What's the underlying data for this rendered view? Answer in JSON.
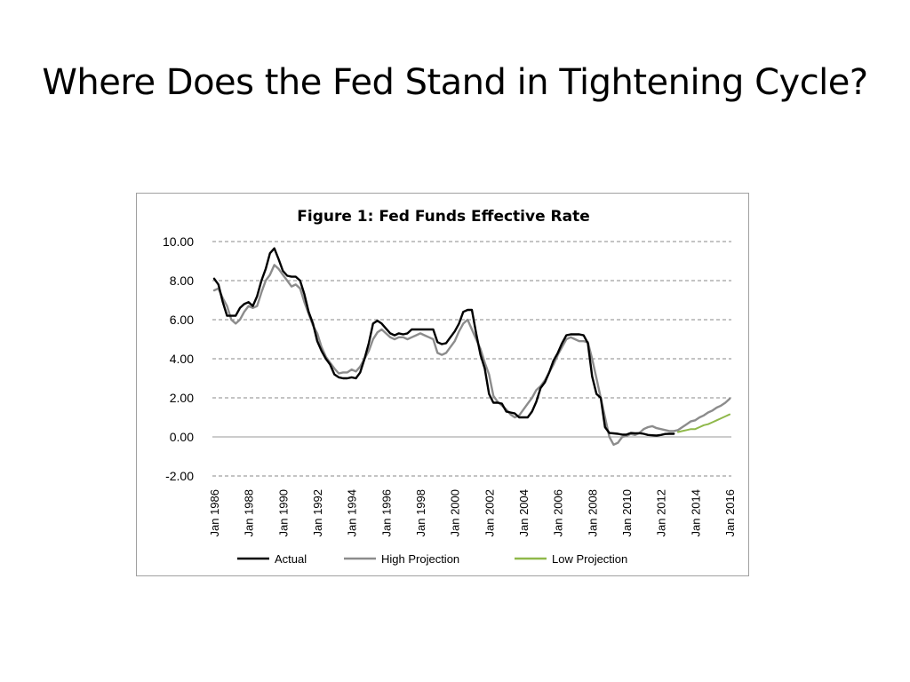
{
  "slide": {
    "title": "Where Does the Fed Stand in Tightening Cycle?"
  },
  "chart_data": {
    "type": "line",
    "title": "Figure 1: Fed Funds Effective Rate",
    "xlabel": "",
    "ylabel": "",
    "ylim": [
      -2,
      10
    ],
    "yticks": [
      10,
      8,
      6,
      4,
      2,
      0,
      -2
    ],
    "ytick_labels": [
      "10.00",
      "8.00",
      "6.00",
      "4.00",
      "2.00",
      "0.00",
      "-2.00"
    ],
    "xlim": [
      1986,
      2016
    ],
    "xticks": [
      1986,
      1988,
      1990,
      1992,
      1994,
      1996,
      1998,
      2000,
      2002,
      2004,
      2006,
      2008,
      2010,
      2012,
      2014,
      2016
    ],
    "xtick_labels": [
      "Jan 1986",
      "Jan 1988",
      "Jan 1990",
      "Jan 1992",
      "Jan 1994",
      "Jan 1996",
      "Jan 1998",
      "Jan 2000",
      "Jan 2002",
      "Jan 2004",
      "Jan 2006",
      "Jan 2008",
      "Jan 2010",
      "Jan 2012",
      "Jan 2014",
      "Jan 2016"
    ],
    "grid": "horizontal dashed",
    "legend_position": "bottom",
    "series": [
      {
        "name": "Actual",
        "color": "#000000",
        "points": [
          [
            1986.0,
            8.1
          ],
          [
            1986.25,
            7.8
          ],
          [
            1986.5,
            6.9
          ],
          [
            1986.75,
            6.2
          ],
          [
            1987.0,
            6.2
          ],
          [
            1987.25,
            6.2
          ],
          [
            1987.5,
            6.6
          ],
          [
            1987.75,
            6.8
          ],
          [
            1988.0,
            6.9
          ],
          [
            1988.25,
            6.7
          ],
          [
            1988.5,
            7.2
          ],
          [
            1988.75,
            8.0
          ],
          [
            1989.0,
            8.6
          ],
          [
            1989.25,
            9.4
          ],
          [
            1989.5,
            9.65
          ],
          [
            1989.75,
            9.1
          ],
          [
            1990.0,
            8.5
          ],
          [
            1990.25,
            8.25
          ],
          [
            1990.5,
            8.2
          ],
          [
            1990.75,
            8.2
          ],
          [
            1991.0,
            8.0
          ],
          [
            1991.25,
            7.3
          ],
          [
            1991.5,
            6.4
          ],
          [
            1991.75,
            5.8
          ],
          [
            1992.0,
            4.9
          ],
          [
            1992.25,
            4.4
          ],
          [
            1992.5,
            4.0
          ],
          [
            1992.75,
            3.7
          ],
          [
            1993.0,
            3.2
          ],
          [
            1993.25,
            3.05
          ],
          [
            1993.5,
            3.0
          ],
          [
            1993.75,
            3.0
          ],
          [
            1994.0,
            3.05
          ],
          [
            1994.25,
            3.0
          ],
          [
            1994.5,
            3.3
          ],
          [
            1994.75,
            4.0
          ],
          [
            1995.0,
            4.8
          ],
          [
            1995.25,
            5.8
          ],
          [
            1995.5,
            5.95
          ],
          [
            1995.75,
            5.8
          ],
          [
            1996.0,
            5.55
          ],
          [
            1996.25,
            5.3
          ],
          [
            1996.5,
            5.2
          ],
          [
            1996.75,
            5.3
          ],
          [
            1997.0,
            5.25
          ],
          [
            1997.25,
            5.3
          ],
          [
            1997.5,
            5.5
          ],
          [
            1997.75,
            5.5
          ],
          [
            1998.0,
            5.5
          ],
          [
            1998.25,
            5.5
          ],
          [
            1998.5,
            5.5
          ],
          [
            1998.75,
            5.5
          ],
          [
            1999.0,
            4.85
          ],
          [
            1999.25,
            4.75
          ],
          [
            1999.5,
            4.8
          ],
          [
            1999.75,
            5.1
          ],
          [
            2000.0,
            5.4
          ],
          [
            2000.25,
            5.8
          ],
          [
            2000.5,
            6.4
          ],
          [
            2000.75,
            6.5
          ],
          [
            2001.0,
            6.5
          ],
          [
            2001.25,
            5.3
          ],
          [
            2001.5,
            4.2
          ],
          [
            2001.75,
            3.5
          ],
          [
            2002.0,
            2.2
          ],
          [
            2002.25,
            1.75
          ],
          [
            2002.5,
            1.75
          ],
          [
            2002.75,
            1.7
          ],
          [
            2003.0,
            1.3
          ],
          [
            2003.25,
            1.25
          ],
          [
            2003.5,
            1.2
          ],
          [
            2003.75,
            1.0
          ],
          [
            2004.0,
            1.0
          ],
          [
            2004.25,
            1.0
          ],
          [
            2004.5,
            1.3
          ],
          [
            2004.75,
            1.8
          ],
          [
            2005.0,
            2.5
          ],
          [
            2005.25,
            2.8
          ],
          [
            2005.5,
            3.3
          ],
          [
            2005.75,
            3.9
          ],
          [
            2006.0,
            4.3
          ],
          [
            2006.25,
            4.8
          ],
          [
            2006.5,
            5.2
          ],
          [
            2006.75,
            5.25
          ],
          [
            2007.0,
            5.25
          ],
          [
            2007.25,
            5.25
          ],
          [
            2007.5,
            5.2
          ],
          [
            2007.75,
            4.8
          ],
          [
            2008.0,
            3.1
          ],
          [
            2008.25,
            2.2
          ],
          [
            2008.5,
            2.0
          ],
          [
            2008.75,
            0.5
          ],
          [
            2009.0,
            0.2
          ],
          [
            2009.25,
            0.18
          ],
          [
            2009.5,
            0.16
          ],
          [
            2009.75,
            0.12
          ],
          [
            2010.0,
            0.12
          ],
          [
            2010.25,
            0.2
          ],
          [
            2010.5,
            0.18
          ],
          [
            2010.75,
            0.19
          ],
          [
            2011.0,
            0.16
          ],
          [
            2011.25,
            0.1
          ],
          [
            2011.5,
            0.08
          ],
          [
            2011.75,
            0.07
          ],
          [
            2012.0,
            0.1
          ],
          [
            2012.25,
            0.15
          ],
          [
            2012.5,
            0.16
          ],
          [
            2012.75,
            0.16
          ]
        ]
      },
      {
        "name": "High Projection",
        "color": "#8c8c8c",
        "points": [
          [
            1986.0,
            7.5
          ],
          [
            1986.25,
            7.6
          ],
          [
            1986.5,
            7.1
          ],
          [
            1986.75,
            6.7
          ],
          [
            1987.0,
            6.0
          ],
          [
            1987.25,
            5.8
          ],
          [
            1987.5,
            6.0
          ],
          [
            1987.75,
            6.4
          ],
          [
            1988.0,
            6.7
          ],
          [
            1988.25,
            6.6
          ],
          [
            1988.5,
            6.7
          ],
          [
            1988.75,
            7.4
          ],
          [
            1989.0,
            8.0
          ],
          [
            1989.25,
            8.3
          ],
          [
            1989.5,
            8.8
          ],
          [
            1989.75,
            8.6
          ],
          [
            1990.0,
            8.3
          ],
          [
            1990.25,
            8.0
          ],
          [
            1990.5,
            7.7
          ],
          [
            1990.75,
            7.8
          ],
          [
            1991.0,
            7.6
          ],
          [
            1991.25,
            6.9
          ],
          [
            1991.5,
            6.3
          ],
          [
            1991.75,
            5.7
          ],
          [
            1992.0,
            5.3
          ],
          [
            1992.25,
            4.6
          ],
          [
            1992.5,
            4.1
          ],
          [
            1992.75,
            3.8
          ],
          [
            1993.0,
            3.5
          ],
          [
            1993.25,
            3.25
          ],
          [
            1993.5,
            3.3
          ],
          [
            1993.75,
            3.3
          ],
          [
            1994.0,
            3.45
          ],
          [
            1994.25,
            3.35
          ],
          [
            1994.5,
            3.6
          ],
          [
            1994.75,
            4.0
          ],
          [
            1995.0,
            4.4
          ],
          [
            1995.25,
            5.0
          ],
          [
            1995.5,
            5.35
          ],
          [
            1995.75,
            5.5
          ],
          [
            1996.0,
            5.3
          ],
          [
            1996.25,
            5.1
          ],
          [
            1996.5,
            5.0
          ],
          [
            1996.75,
            5.1
          ],
          [
            1997.0,
            5.1
          ],
          [
            1997.25,
            5.0
          ],
          [
            1997.5,
            5.1
          ],
          [
            1997.75,
            5.2
          ],
          [
            1998.0,
            5.3
          ],
          [
            1998.25,
            5.2
          ],
          [
            1998.5,
            5.1
          ],
          [
            1998.75,
            5.0
          ],
          [
            1999.0,
            4.3
          ],
          [
            1999.25,
            4.2
          ],
          [
            1999.5,
            4.3
          ],
          [
            1999.75,
            4.6
          ],
          [
            2000.0,
            4.9
          ],
          [
            2000.25,
            5.4
          ],
          [
            2000.5,
            5.8
          ],
          [
            2000.75,
            6.0
          ],
          [
            2001.0,
            5.5
          ],
          [
            2001.25,
            5.0
          ],
          [
            2001.5,
            4.5
          ],
          [
            2001.75,
            3.8
          ],
          [
            2002.0,
            3.2
          ],
          [
            2002.25,
            2.1
          ],
          [
            2002.5,
            1.8
          ],
          [
            2002.75,
            1.6
          ],
          [
            2003.0,
            1.4
          ],
          [
            2003.25,
            1.15
          ],
          [
            2003.5,
            1.0
          ],
          [
            2003.75,
            1.1
          ],
          [
            2004.0,
            1.4
          ],
          [
            2004.25,
            1.7
          ],
          [
            2004.5,
            2.0
          ],
          [
            2004.75,
            2.4
          ],
          [
            2005.0,
            2.6
          ],
          [
            2005.25,
            2.9
          ],
          [
            2005.5,
            3.3
          ],
          [
            2005.75,
            3.7
          ],
          [
            2006.0,
            4.2
          ],
          [
            2006.25,
            4.6
          ],
          [
            2006.5,
            5.0
          ],
          [
            2006.75,
            5.1
          ],
          [
            2007.0,
            5.0
          ],
          [
            2007.25,
            4.9
          ],
          [
            2007.5,
            4.9
          ],
          [
            2007.75,
            4.85
          ],
          [
            2008.0,
            4.0
          ],
          [
            2008.25,
            3.0
          ],
          [
            2008.5,
            2.0
          ],
          [
            2008.75,
            1.0
          ],
          [
            2009.0,
            0.0
          ],
          [
            2009.25,
            -0.4
          ],
          [
            2009.5,
            -0.3
          ],
          [
            2009.75,
            0.0
          ],
          [
            2010.0,
            0.05
          ],
          [
            2010.25,
            0.15
          ],
          [
            2010.5,
            0.1
          ],
          [
            2010.75,
            0.2
          ],
          [
            2011.0,
            0.4
          ],
          [
            2011.25,
            0.5
          ],
          [
            2011.5,
            0.55
          ],
          [
            2011.75,
            0.45
          ],
          [
            2012.0,
            0.4
          ],
          [
            2012.25,
            0.35
          ],
          [
            2012.5,
            0.3
          ],
          [
            2012.75,
            0.3
          ],
          [
            2013.0,
            0.35
          ],
          [
            2013.25,
            0.5
          ],
          [
            2013.5,
            0.65
          ],
          [
            2013.75,
            0.8
          ],
          [
            2014.0,
            0.85
          ],
          [
            2014.25,
            1.0
          ],
          [
            2014.5,
            1.1
          ],
          [
            2014.75,
            1.25
          ],
          [
            2015.0,
            1.35
          ],
          [
            2015.25,
            1.5
          ],
          [
            2015.5,
            1.6
          ],
          [
            2015.75,
            1.75
          ],
          [
            2016.0,
            1.95
          ]
        ]
      },
      {
        "name": "Low Projection",
        "color": "#8fb84a",
        "points": [
          [
            2013.0,
            0.25
          ],
          [
            2013.25,
            0.3
          ],
          [
            2013.5,
            0.35
          ],
          [
            2013.75,
            0.4
          ],
          [
            2014.0,
            0.4
          ],
          [
            2014.25,
            0.5
          ],
          [
            2014.5,
            0.6
          ],
          [
            2014.75,
            0.65
          ],
          [
            2015.0,
            0.75
          ],
          [
            2015.25,
            0.85
          ],
          [
            2015.5,
            0.95
          ],
          [
            2015.75,
            1.05
          ],
          [
            2016.0,
            1.15
          ]
        ]
      }
    ]
  }
}
